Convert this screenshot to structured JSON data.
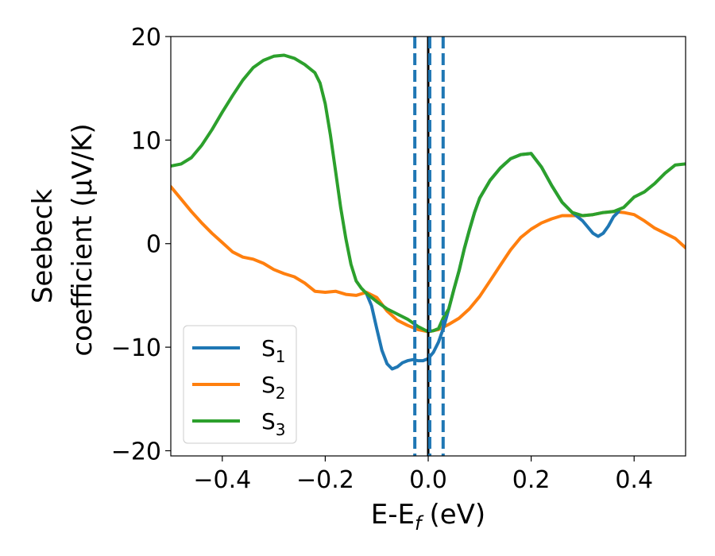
{
  "chart_data": {
    "type": "line",
    "title": "",
    "xlabel": "E-E",
    "xlabel_sub": "f",
    "xlabel_unit": "(eV)",
    "ylabel_line1": "Seebeck",
    "ylabel_line2": "coefficient  (μV/K)",
    "xlim": [
      -0.5,
      0.5
    ],
    "ylim": [
      -20.5,
      20
    ],
    "xticks": [
      -0.4,
      -0.2,
      0.0,
      0.2,
      0.4
    ],
    "xtick_labels": [
      "−0.4",
      "−0.2",
      "0.0",
      "0.2",
      "0.4"
    ],
    "yticks": [
      -20,
      -10,
      0,
      10,
      20
    ],
    "ytick_labels": [
      "−20",
      "−10",
      "0",
      "10",
      "20"
    ],
    "grid": false,
    "legend_position": "lower-left",
    "vlines": [
      {
        "x": -0.026,
        "style": "dashed",
        "color": "#1f77b4"
      },
      {
        "x": 0.0,
        "style": "solid",
        "color": "#000000"
      },
      {
        "x": 0.003,
        "style": "dashed",
        "color": "#1f77b4"
      },
      {
        "x": 0.029,
        "style": "dashed",
        "color": "#1f77b4"
      }
    ],
    "series": [
      {
        "name": "S",
        "sub": "1",
        "color": "#1f77b4",
        "points": [
          [
            -0.12,
            -4.8
          ],
          [
            -0.11,
            -6.0
          ],
          [
            -0.1,
            -8.2
          ],
          [
            -0.09,
            -10.3
          ],
          [
            -0.08,
            -11.6
          ],
          [
            -0.07,
            -12.1
          ],
          [
            -0.06,
            -11.9
          ],
          [
            -0.05,
            -11.5
          ],
          [
            -0.04,
            -11.3
          ],
          [
            -0.03,
            -11.2
          ],
          [
            -0.02,
            -11.3
          ],
          [
            -0.01,
            -11.3
          ],
          [
            0.0,
            -11.1
          ],
          [
            0.01,
            -10.5
          ],
          [
            0.02,
            -9.5
          ],
          [
            0.03,
            -8.1
          ],
          [
            0.04,
            -6.3
          ],
          [
            0.05,
            -4.4
          ],
          [
            0.06,
            -2.6
          ],
          [
            0.07,
            -0.5
          ],
          [
            0.08,
            1.3
          ],
          [
            0.09,
            3.0
          ],
          [
            0.1,
            4.4
          ],
          [
            0.12,
            6.1
          ],
          [
            0.14,
            7.3
          ],
          [
            0.16,
            8.2
          ],
          [
            0.18,
            8.6
          ],
          [
            0.2,
            8.7
          ],
          [
            0.22,
            7.4
          ],
          [
            0.24,
            5.6
          ],
          [
            0.26,
            4.0
          ],
          [
            0.28,
            3.0
          ],
          [
            0.3,
            2.2
          ],
          [
            0.31,
            1.6
          ],
          [
            0.32,
            1.0
          ],
          [
            0.33,
            0.7
          ],
          [
            0.34,
            1.0
          ],
          [
            0.35,
            1.7
          ],
          [
            0.36,
            2.6
          ],
          [
            0.37,
            3.1
          ]
        ]
      },
      {
        "name": "S",
        "sub": "2",
        "color": "#ff7f0e",
        "points": [
          [
            -0.5,
            5.5
          ],
          [
            -0.48,
            4.3
          ],
          [
            -0.46,
            3.1
          ],
          [
            -0.44,
            2.0
          ],
          [
            -0.42,
            1.0
          ],
          [
            -0.4,
            0.1
          ],
          [
            -0.38,
            -0.8
          ],
          [
            -0.36,
            -1.3
          ],
          [
            -0.34,
            -1.5
          ],
          [
            -0.32,
            -1.9
          ],
          [
            -0.3,
            -2.5
          ],
          [
            -0.28,
            -2.9
          ],
          [
            -0.26,
            -3.2
          ],
          [
            -0.24,
            -3.8
          ],
          [
            -0.22,
            -4.6
          ],
          [
            -0.2,
            -4.7
          ],
          [
            -0.18,
            -4.6
          ],
          [
            -0.16,
            -4.9
          ],
          [
            -0.14,
            -5.0
          ],
          [
            -0.12,
            -4.7
          ],
          [
            -0.1,
            -5.2
          ],
          [
            -0.08,
            -6.5
          ],
          [
            -0.06,
            -7.4
          ],
          [
            -0.04,
            -7.9
          ],
          [
            -0.02,
            -8.3
          ],
          [
            0.0,
            -8.5
          ],
          [
            0.02,
            -8.3
          ],
          [
            0.04,
            -7.8
          ],
          [
            0.06,
            -7.2
          ],
          [
            0.08,
            -6.3
          ],
          [
            0.1,
            -5.1
          ],
          [
            0.12,
            -3.6
          ],
          [
            0.14,
            -2.1
          ],
          [
            0.16,
            -0.6
          ],
          [
            0.18,
            0.6
          ],
          [
            0.2,
            1.4
          ],
          [
            0.22,
            2.0
          ],
          [
            0.24,
            2.4
          ],
          [
            0.26,
            2.7
          ],
          [
            0.28,
            2.7
          ],
          [
            0.3,
            2.7
          ],
          [
            0.32,
            2.8
          ],
          [
            0.34,
            3.0
          ],
          [
            0.36,
            3.1
          ],
          [
            0.38,
            3.0
          ],
          [
            0.4,
            2.8
          ],
          [
            0.42,
            2.2
          ],
          [
            0.44,
            1.5
          ],
          [
            0.46,
            1.0
          ],
          [
            0.48,
            0.5
          ],
          [
            0.5,
            -0.4
          ]
        ]
      },
      {
        "name": "S",
        "sub": "3",
        "color": "#2ca02c",
        "points": [
          [
            -0.5,
            7.5
          ],
          [
            -0.48,
            7.7
          ],
          [
            -0.46,
            8.3
          ],
          [
            -0.44,
            9.5
          ],
          [
            -0.42,
            11.0
          ],
          [
            -0.4,
            12.7
          ],
          [
            -0.38,
            14.3
          ],
          [
            -0.36,
            15.8
          ],
          [
            -0.34,
            17.0
          ],
          [
            -0.32,
            17.7
          ],
          [
            -0.3,
            18.1
          ],
          [
            -0.28,
            18.2
          ],
          [
            -0.26,
            17.9
          ],
          [
            -0.24,
            17.3
          ],
          [
            -0.22,
            16.5
          ],
          [
            -0.21,
            15.5
          ],
          [
            -0.2,
            13.5
          ],
          [
            -0.19,
            10.5
          ],
          [
            -0.18,
            7.0
          ],
          [
            -0.17,
            3.5
          ],
          [
            -0.16,
            0.5
          ],
          [
            -0.15,
            -2.0
          ],
          [
            -0.14,
            -3.6
          ],
          [
            -0.13,
            -4.3
          ],
          [
            -0.12,
            -4.8
          ],
          [
            -0.1,
            -5.6
          ],
          [
            -0.08,
            -6.3
          ],
          [
            -0.06,
            -6.8
          ],
          [
            -0.04,
            -7.3
          ],
          [
            -0.02,
            -8.0
          ],
          [
            0.0,
            -8.5
          ],
          [
            0.01,
            -8.4
          ],
          [
            0.02,
            -8.2
          ],
          [
            0.03,
            -7.1
          ],
          [
            0.04,
            -6.3
          ],
          [
            0.05,
            -4.4
          ],
          [
            0.06,
            -2.6
          ],
          [
            0.07,
            -0.5
          ],
          [
            0.08,
            1.3
          ],
          [
            0.09,
            3.0
          ],
          [
            0.1,
            4.4
          ],
          [
            0.12,
            6.1
          ],
          [
            0.14,
            7.3
          ],
          [
            0.16,
            8.2
          ],
          [
            0.18,
            8.6
          ],
          [
            0.2,
            8.7
          ],
          [
            0.22,
            7.4
          ],
          [
            0.24,
            5.6
          ],
          [
            0.26,
            4.0
          ],
          [
            0.28,
            3.0
          ],
          [
            0.3,
            2.7
          ],
          [
            0.32,
            2.8
          ],
          [
            0.34,
            3.0
          ],
          [
            0.36,
            3.1
          ],
          [
            0.38,
            3.5
          ],
          [
            0.4,
            4.5
          ],
          [
            0.42,
            5.0
          ],
          [
            0.44,
            5.8
          ],
          [
            0.46,
            6.8
          ],
          [
            0.48,
            7.6
          ],
          [
            0.5,
            7.7
          ]
        ]
      }
    ]
  }
}
